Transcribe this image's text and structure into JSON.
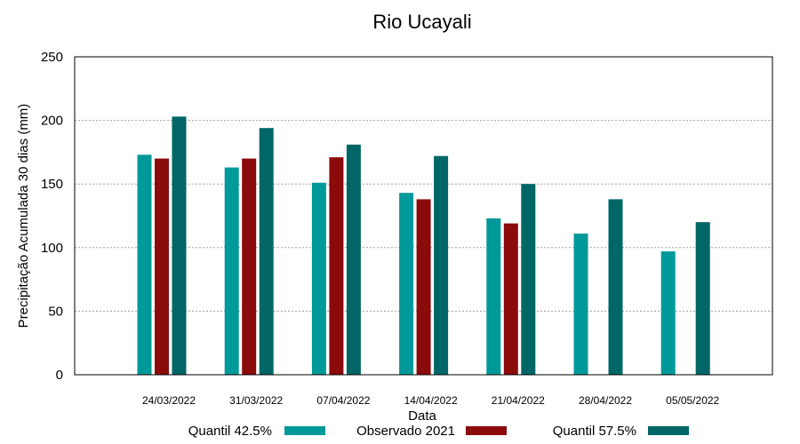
{
  "chart_data": {
    "type": "bar",
    "title": "Rio Ucayali",
    "xlabel": "Data",
    "ylabel": "Precipitação Acumulada 30 dias (mm)",
    "ylim": [
      0,
      250
    ],
    "yticks": [
      0,
      50,
      100,
      150,
      200,
      250
    ],
    "grid": true,
    "legend_position": "bottom",
    "categories": [
      "24/03/2022",
      "31/03/2022",
      "07/04/2022",
      "14/04/2022",
      "21/04/2022",
      "28/04/2022",
      "05/05/2022"
    ],
    "series": [
      {
        "name": "Quantil 42.5%",
        "color": "#009999",
        "values": [
          173,
          163,
          151,
          143,
          123,
          111,
          97
        ]
      },
      {
        "name": "Observado 2021",
        "color": "#8b0a0a",
        "values": [
          170,
          170,
          171,
          138,
          119,
          null,
          null
        ]
      },
      {
        "name": "Quantil 57.5%",
        "color": "#006666",
        "values": [
          203,
          194,
          181,
          172,
          150,
          138,
          120
        ]
      }
    ]
  }
}
